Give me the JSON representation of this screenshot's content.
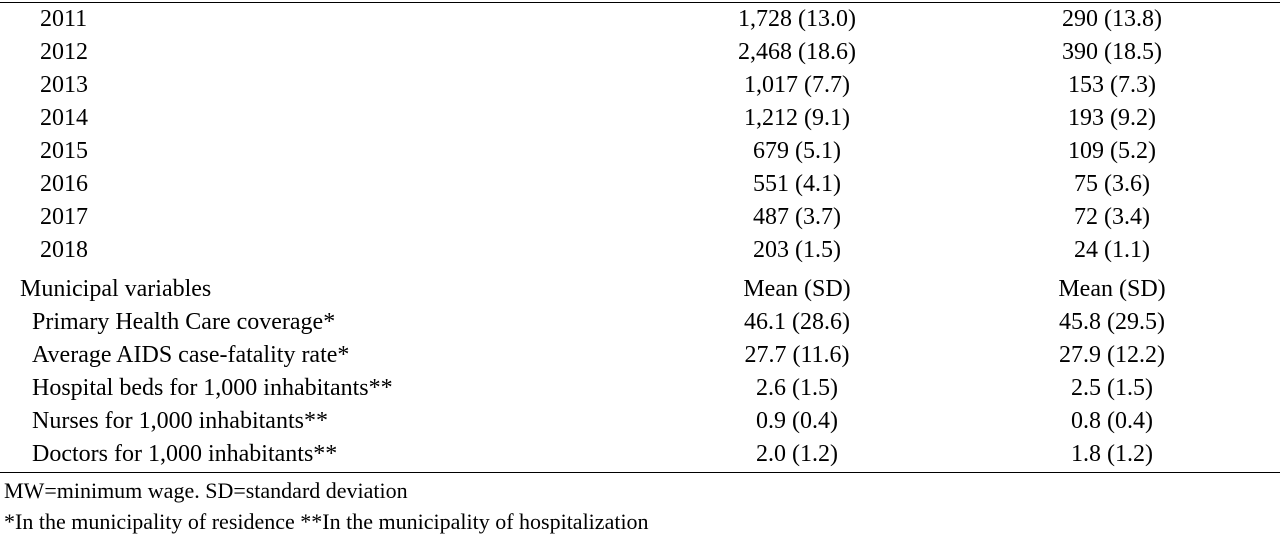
{
  "rows": [
    {
      "label": "2011",
      "col1": "1,728 (13.0)",
      "col2": "290 (13.8)"
    },
    {
      "label": "2012",
      "col1": "2,468 (18.6)",
      "col2": "390 (18.5)"
    },
    {
      "label": "2013",
      "col1": "1,017 (7.7)",
      "col2": "153 (7.3)"
    },
    {
      "label": "2014",
      "col1": "1,212 (9.1)",
      "col2": "193 (9.2)"
    },
    {
      "label": "2015",
      "col1": "679 (5.1)",
      "col2": "109 (5.2)"
    },
    {
      "label": "2016",
      "col1": "551 (4.1)",
      "col2": "75 (3.6)"
    },
    {
      "label": "2017",
      "col1": "487 (3.7)",
      "col2": "72 (3.4)"
    },
    {
      "label": "2018",
      "col1": "203 (1.5)",
      "col2": "24 (1.1)"
    },
    {
      "label": "Municipal variables",
      "col1": "Mean (SD)",
      "col2": "Mean (SD)"
    },
    {
      "label": "Primary Health Care coverage*",
      "col1": "46.1 (28.6)",
      "col2": "45.8 (29.5)"
    },
    {
      "label": "Average AIDS case-fatality rate*",
      "col1": "27.7 (11.6)",
      "col2": "27.9 (12.2)"
    },
    {
      "label": "Hospital beds for 1,000 inhabitants**",
      "col1": "2.6 (1.5)",
      "col2": "2.5 (1.5)"
    },
    {
      "label": "Nurses for 1,000 inhabitants**",
      "col1": "0.9 (0.4)",
      "col2": "0.8 (0.4)"
    },
    {
      "label": "Doctors for 1,000 inhabitants**",
      "col1": "2.0 (1.2)",
      "col2": "1.8 (1.2)"
    }
  ],
  "footnotes": {
    "line1": "MW=minimum wage. SD=standard deviation",
    "line2": "*In the municipality of residence **In the municipality of hospitalization"
  }
}
